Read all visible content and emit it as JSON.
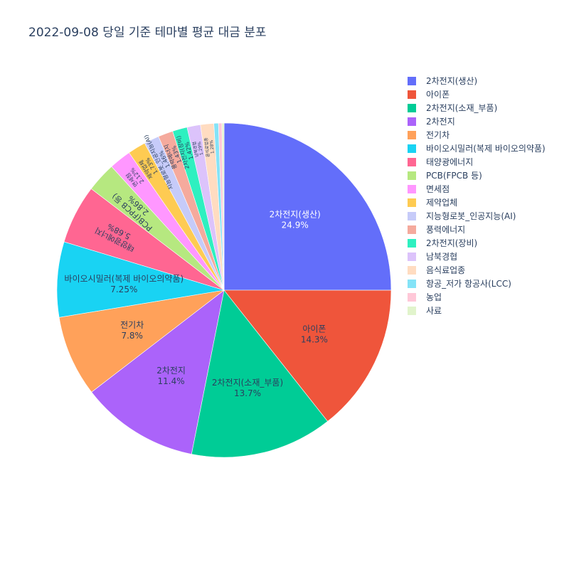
{
  "chart_data": {
    "type": "pie",
    "title": "2022-09-08 당일 기준 테마별 평균 대금 분포",
    "legend_position": "right",
    "sort": "descending",
    "direction": "clockwise",
    "slices": [
      {
        "label": "2차전지(생산)",
        "percent": 24.9,
        "percent_text": "24.9%",
        "color": "#636efa"
      },
      {
        "label": "아이폰",
        "percent": 14.3,
        "percent_text": "14.3%",
        "color": "#EF553B"
      },
      {
        "label": "2차전지(소재_부품)",
        "percent": 13.7,
        "percent_text": "13.7%",
        "color": "#00cc96"
      },
      {
        "label": "2차전지",
        "percent": 11.4,
        "percent_text": "11.4%",
        "color": "#ab63fa"
      },
      {
        "label": "전기차",
        "percent": 7.8,
        "percent_text": "7.8%",
        "color": "#FFA15A"
      },
      {
        "label": "바이오시밀러(복제 바이오의약품)",
        "percent": 7.25,
        "percent_text": "7.25%",
        "color": "#19d3f3"
      },
      {
        "label": "태양광에너지",
        "percent": 5.68,
        "percent_text": "5.68%",
        "color": "#FF6692"
      },
      {
        "label": "PCB(FPCB 등)",
        "percent": 2.86,
        "percent_text": "2.86%",
        "color": "#B6E880"
      },
      {
        "label": "면세점",
        "percent": 2.12,
        "percent_text": "2.12%",
        "color": "#FF97FF"
      },
      {
        "label": "제약업체",
        "percent": 1.73,
        "percent_text": "1.73%",
        "color": "#FECB52"
      },
      {
        "label": "지능형로봇_인공지능(AI)",
        "percent": 1.46,
        "percent_text": "1.46%",
        "color": "#c6cbf9"
      },
      {
        "label": "풍력에너지",
        "percent": 1.43,
        "percent_text": "1.43%",
        "color": "#f5aa9d"
      },
      {
        "label": "2차전지(장비)",
        "percent": 1.42,
        "percent_text": "1.42%",
        "color": "#2ef0c0"
      },
      {
        "label": "남북경협",
        "percent": 1.29,
        "percent_text": "1.29%",
        "color": "#dcc3fb"
      },
      {
        "label": "음식료업종",
        "percent": 1.28,
        "percent_text": "1.28%",
        "color": "#ffdcc1"
      },
      {
        "label": "항공_저가 항공사(LCC)",
        "percent": 0.44,
        "percent_text": "",
        "color": "#84e3f7"
      },
      {
        "label": "농업",
        "percent": 0.33,
        "percent_text": "",
        "color": "#ffc8d8"
      },
      {
        "label": "사료",
        "percent": 0.2,
        "percent_text": "",
        "color": "#e1f4cc"
      }
    ]
  }
}
